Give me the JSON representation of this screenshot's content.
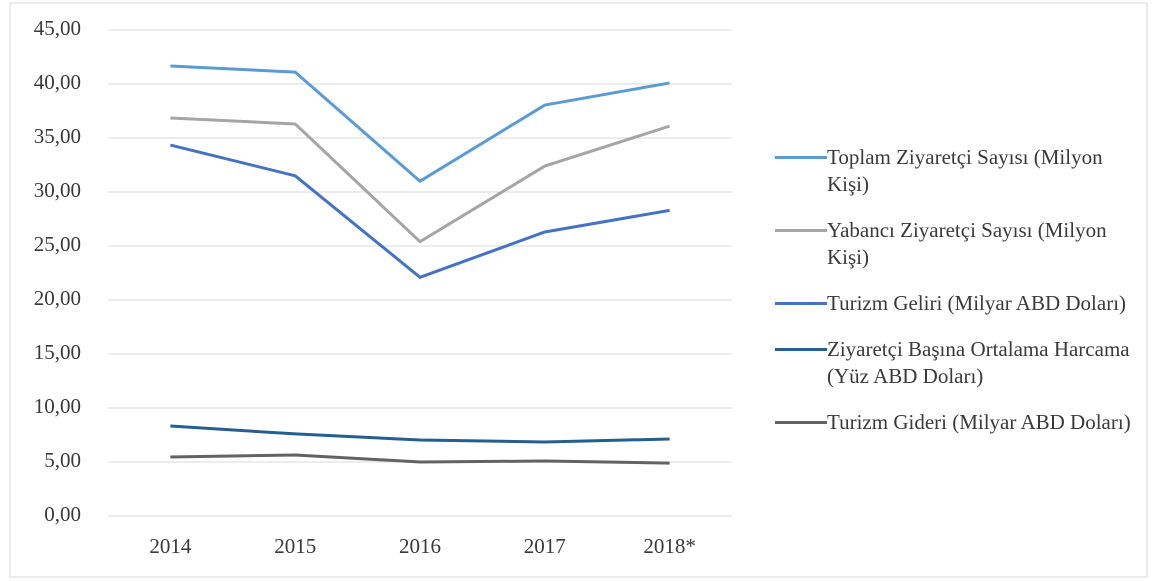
{
  "chart_data": {
    "type": "line",
    "categories": [
      "2014",
      "2015",
      "2016",
      "2017",
      "2018*"
    ],
    "series": [
      {
        "name": "Toplam Ziyaretçi Sayısı (Milyon Kişi)",
        "color": "#5b9bd5",
        "values": [
          41.67,
          41.1,
          31.0,
          38.05,
          40.1
        ]
      },
      {
        "name": "Yabancı Ziyaretçi Sayısı (Milyon Kişi)",
        "color": "#a5a5a5",
        "values": [
          36.85,
          36.3,
          25.4,
          32.4,
          36.1
        ]
      },
      {
        "name": "Turizm Geliri (Milyar ABD Doları)",
        "color": "#4472c4",
        "values": [
          34.35,
          31.5,
          22.1,
          26.3,
          28.3
        ]
      },
      {
        "name": "Ziyaretçi Başına Ortalama Harcama (Yüz ABD Doları)",
        "color": "#255e91",
        "values": [
          8.33,
          7.6,
          7.04,
          6.85,
          7.13
        ]
      },
      {
        "name": "Turizm Gideri (Milyar ABD Doları)",
        "color": "#636363",
        "values": [
          5.46,
          5.65,
          5.0,
          5.09,
          4.9
        ]
      }
    ],
    "ylim": [
      0,
      45
    ],
    "yticks": [
      {
        "value": 0,
        "label": "0,00"
      },
      {
        "value": 5,
        "label": "5,00"
      },
      {
        "value": 10,
        "label": "10,00"
      },
      {
        "value": 15,
        "label": "15,00"
      },
      {
        "value": 20,
        "label": "20,00"
      },
      {
        "value": 25,
        "label": "25,00"
      },
      {
        "value": 30,
        "label": "30,00"
      },
      {
        "value": 35,
        "label": "35,00"
      },
      {
        "value": 40,
        "label": "40,00"
      },
      {
        "value": 45,
        "label": "45,00"
      }
    ],
    "grid": true,
    "legend": "right"
  }
}
